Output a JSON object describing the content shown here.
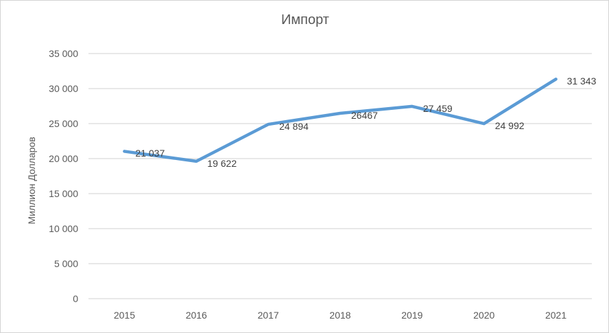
{
  "chart_data": {
    "type": "line",
    "title": "Импорт",
    "xlabel": "",
    "ylabel": "Миллион Долларов",
    "categories": [
      "2015",
      "2016",
      "2017",
      "2018",
      "2019",
      "2020",
      "2021"
    ],
    "series": [
      {
        "name": "Импорт",
        "values": [
          21037,
          19622,
          24894,
          26467,
          27459,
          24992,
          31343
        ],
        "data_labels": [
          "21 037",
          "19 622",
          "24 894",
          "26467",
          "27 459",
          "24 992",
          "31 343"
        ]
      }
    ],
    "ylim": [
      0,
      35000
    ],
    "y_ticks": [
      0,
      5000,
      10000,
      15000,
      20000,
      25000,
      30000,
      35000
    ],
    "y_tick_labels": [
      "0",
      "5 000",
      "10 000",
      "15 000",
      "20 000",
      "25 000",
      "30 000",
      "35 000"
    ],
    "grid": "horizontal",
    "legend": "none",
    "line_color": "#5B9BD5",
    "gridline_color": "#D9D9D9",
    "axis_text_color": "#595959",
    "data_label_color": "#404040"
  }
}
